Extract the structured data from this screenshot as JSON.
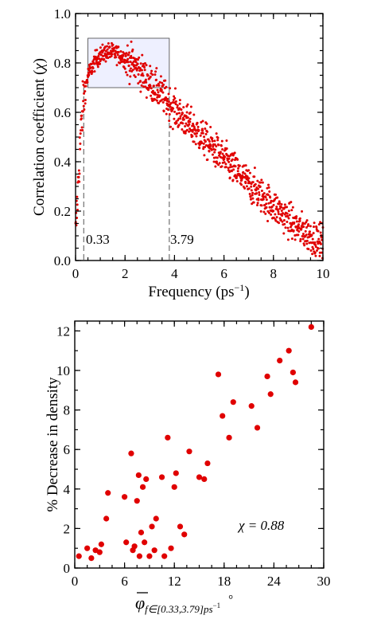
{
  "chart_data": [
    {
      "type": "scatter",
      "xlabel": "Frequency (ps",
      "xlabel_sup": "−1",
      "xlabel_end": ")",
      "ylabel": "Correlation coefficient (",
      "ylabel_symbol": "χ",
      "ylabel_end": ")",
      "xlim": [
        0,
        10
      ],
      "ylim": [
        0,
        1.0
      ],
      "x_ticks": [
        "0",
        "2",
        "4",
        "6",
        "8",
        "10"
      ],
      "y_ticks": [
        "0.0",
        "0.2",
        "0.4",
        "0.6",
        "0.8",
        "1.0"
      ],
      "grid": false,
      "point_color": "#e00000",
      "highlight_box": {
        "x": [
          0.5,
          3.79
        ],
        "y": [
          0.7,
          0.9
        ],
        "fill": "#eef0ff"
      },
      "vlines": [
        0.33,
        3.79
      ],
      "annotations": [
        "0.33",
        "3.79"
      ],
      "series": [
        {
          "points": "dense scatter (~1000 points)",
          "shape": [
            [
              0.0,
              0.1
            ],
            [
              0.1,
              0.3
            ],
            [
              0.2,
              0.5
            ],
            [
              0.33,
              0.66
            ],
            [
              0.5,
              0.75
            ],
            [
              0.8,
              0.81
            ],
            [
              1.0,
              0.83
            ],
            [
              1.3,
              0.845
            ],
            [
              1.6,
              0.84
            ],
            [
              2.0,
              0.82
            ],
            [
              2.5,
              0.78
            ],
            [
              3.0,
              0.72
            ],
            [
              3.5,
              0.67
            ],
            [
              4.0,
              0.61
            ],
            [
              5.0,
              0.51
            ],
            [
              6.0,
              0.41
            ],
            [
              7.0,
              0.31
            ],
            [
              8.0,
              0.22
            ],
            [
              9.0,
              0.13
            ],
            [
              10.0,
              0.07
            ]
          ]
        }
      ]
    },
    {
      "type": "scatter",
      "xlabel_symbol": "φ",
      "xlabel_sub": "f∈[0.33,3.79]ps",
      "xlabel_sub_sup": "−1",
      "xlabel_deg": "°",
      "ylabel": "% Decrease in density",
      "xlim": [
        0,
        30
      ],
      "ylim": [
        0,
        12.5
      ],
      "x_ticks": [
        "0",
        "6",
        "12",
        "18",
        "24",
        "30"
      ],
      "y_ticks": [
        "0",
        "2",
        "4",
        "6",
        "8",
        "10",
        "12"
      ],
      "grid": false,
      "point_color": "#e00000",
      "annotation": "χ = 0.88",
      "series": [
        {
          "points": [
            [
              0.5,
              0.6
            ],
            [
              1.5,
              1.0
            ],
            [
              2.0,
              0.5
            ],
            [
              2.5,
              0.9
            ],
            [
              3.0,
              0.8
            ],
            [
              3.2,
              1.2
            ],
            [
              3.8,
              2.5
            ],
            [
              4.0,
              3.8
            ],
            [
              6.0,
              3.6
            ],
            [
              6.2,
              1.3
            ],
            [
              6.8,
              5.8
            ],
            [
              7.0,
              0.9
            ],
            [
              7.2,
              1.1
            ],
            [
              7.5,
              3.4
            ],
            [
              7.7,
              4.7
            ],
            [
              7.8,
              0.6
            ],
            [
              8.0,
              1.8
            ],
            [
              8.2,
              4.1
            ],
            [
              8.4,
              1.3
            ],
            [
              8.6,
              4.5
            ],
            [
              9.0,
              0.6
            ],
            [
              9.3,
              2.1
            ],
            [
              9.6,
              0.9
            ],
            [
              9.8,
              2.5
            ],
            [
              10.5,
              4.6
            ],
            [
              10.8,
              0.6
            ],
            [
              11.2,
              6.6
            ],
            [
              11.6,
              1.0
            ],
            [
              12.0,
              4.1
            ],
            [
              12.2,
              4.8
            ],
            [
              12.7,
              2.1
            ],
            [
              13.2,
              1.7
            ],
            [
              13.8,
              5.9
            ],
            [
              15.0,
              4.6
            ],
            [
              15.6,
              4.5
            ],
            [
              16.0,
              5.3
            ],
            [
              17.3,
              9.8
            ],
            [
              17.8,
              7.7
            ],
            [
              18.6,
              6.6
            ],
            [
              19.1,
              8.4
            ],
            [
              21.3,
              8.2
            ],
            [
              22.0,
              7.1
            ],
            [
              23.2,
              9.7
            ],
            [
              23.6,
              8.8
            ],
            [
              24.7,
              10.5
            ],
            [
              25.8,
              11.0
            ],
            [
              26.3,
              9.9
            ],
            [
              26.6,
              9.4
            ],
            [
              28.5,
              12.2
            ]
          ]
        }
      ]
    }
  ]
}
